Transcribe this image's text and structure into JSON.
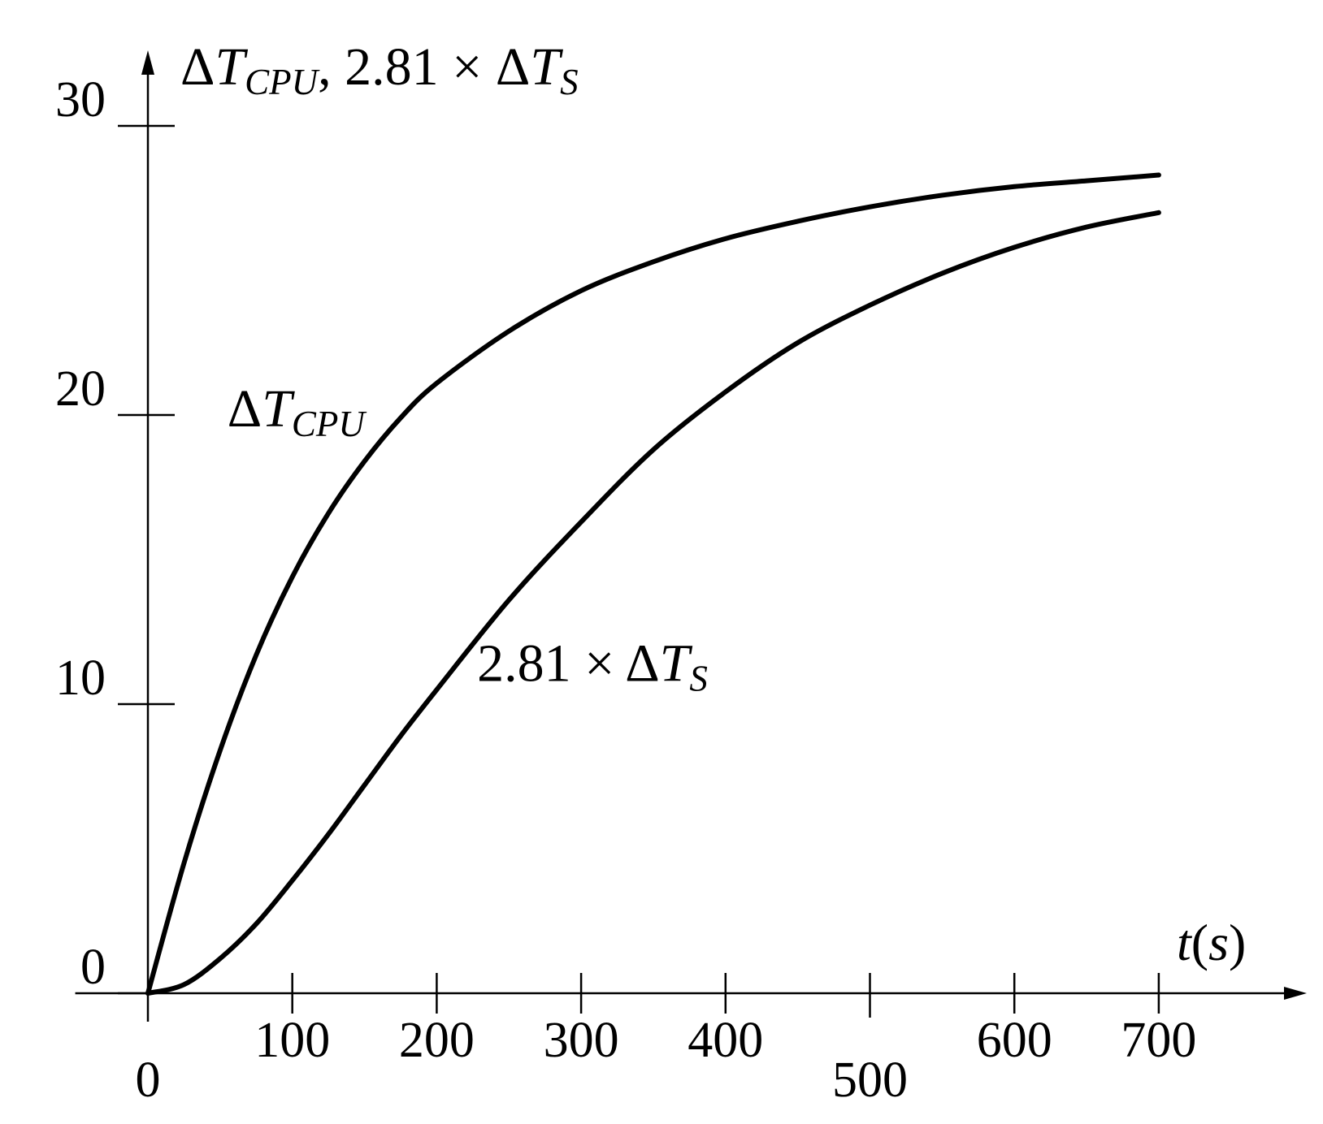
{
  "chart_data": {
    "type": "line",
    "title": "",
    "ylabel": {
      "parts": [
        {
          "text": "Δ",
          "style": "normal"
        },
        {
          "text": "T",
          "style": "italic"
        },
        {
          "text": "CPU",
          "style": "sub-italic"
        },
        {
          "text": ", 2.81 × Δ",
          "style": "normal"
        },
        {
          "text": "T",
          "style": "italic"
        },
        {
          "text": "S",
          "style": "sub-italic"
        }
      ]
    },
    "xlabel": {
      "parts": [
        {
          "text": "t",
          "style": "italic"
        },
        {
          "text": "(",
          "style": "normal"
        },
        {
          "text": "s",
          "style": "italic"
        },
        {
          "text": ")",
          "style": "normal"
        }
      ]
    },
    "xlim": [
      -25,
      800
    ],
    "ylim": [
      0,
      32
    ],
    "x_ticks": [
      {
        "value": 0,
        "label": "0"
      },
      {
        "value": 100,
        "label": "100"
      },
      {
        "value": 200,
        "label": "200"
      },
      {
        "value": 300,
        "label": "300"
      },
      {
        "value": 400,
        "label": "400"
      },
      {
        "value": 500,
        "label": "500"
      },
      {
        "value": 600,
        "label": "600"
      },
      {
        "value": 700,
        "label": "700"
      }
    ],
    "y_ticks": [
      {
        "value": 0,
        "label": "0"
      },
      {
        "value": 10,
        "label": "10"
      },
      {
        "value": 20,
        "label": "20"
      },
      {
        "value": 30,
        "label": "30"
      }
    ],
    "grid": false,
    "legend": "none",
    "series": [
      {
        "name": "ΔT_CPU",
        "label_parts": [
          {
            "text": "Δ",
            "style": "normal"
          },
          {
            "text": "T",
            "style": "italic"
          },
          {
            "text": "CPU",
            "style": "sub-italic"
          }
        ],
        "x": [
          0,
          25,
          50,
          75,
          100,
          125,
          150,
          175,
          200,
          250,
          300,
          350,
          400,
          450,
          500,
          550,
          600,
          650,
          700
        ],
        "y": [
          0,
          4.5,
          8.4,
          11.7,
          14.4,
          16.6,
          18.4,
          19.9,
          21.1,
          22.9,
          24.3,
          25.3,
          26.1,
          26.7,
          27.2,
          27.6,
          27.9,
          28.1,
          28.3
        ]
      },
      {
        "name": "2.81 × ΔT_S",
        "label_parts": [
          {
            "text": "2.81 × Δ",
            "style": "normal"
          },
          {
            "text": "T",
            "style": "italic"
          },
          {
            "text": "S",
            "style": "sub-italic"
          }
        ],
        "x": [
          0,
          25,
          50,
          75,
          100,
          125,
          150,
          175,
          200,
          250,
          300,
          350,
          400,
          450,
          500,
          550,
          600,
          650,
          700
        ],
        "y": [
          0,
          0.3,
          1.2,
          2.4,
          3.9,
          5.5,
          7.2,
          8.9,
          10.5,
          13.6,
          16.3,
          18.8,
          20.8,
          22.5,
          23.8,
          24.9,
          25.8,
          26.5,
          27.0
        ]
      }
    ],
    "annotations": [
      {
        "series": "ΔT_CPU",
        "x": 55,
        "y": 19.6
      },
      {
        "series": "2.81 × ΔT_S",
        "x": 228,
        "y": 10.8
      }
    ]
  }
}
